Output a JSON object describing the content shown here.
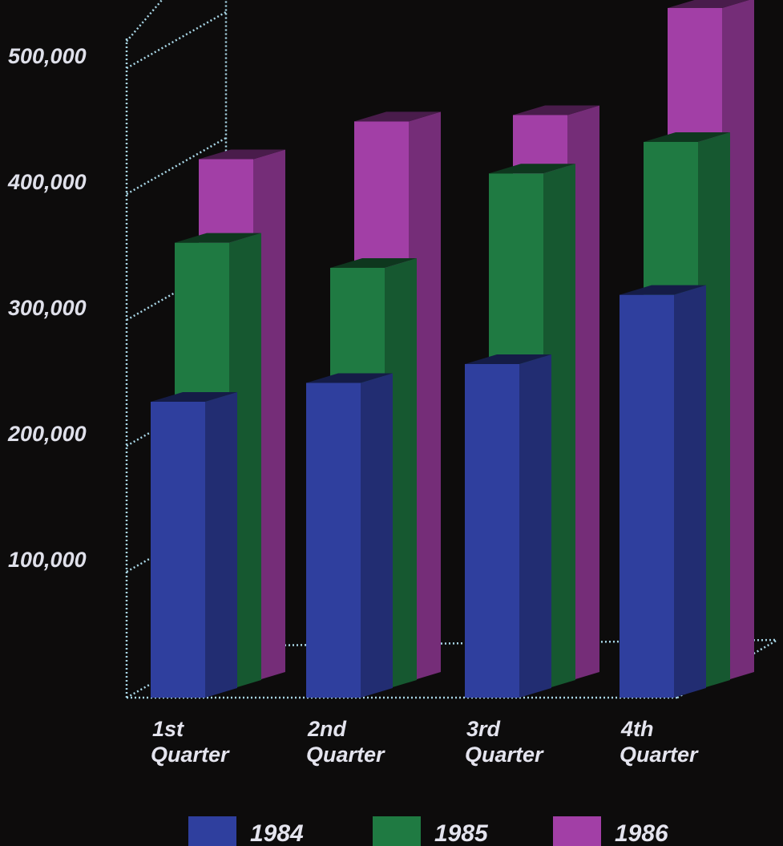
{
  "chart_data": {
    "type": "bar",
    "subtype": "3d-stacked-depth",
    "categories": [
      "1st Quarter",
      "2nd Quarter",
      "3rd Quarter",
      "4th Quarter"
    ],
    "category_lines": [
      [
        "1st",
        "Quarter"
      ],
      [
        "2nd",
        "Quarter"
      ],
      [
        "3rd",
        "Quarter"
      ],
      [
        "4th",
        "Quarter"
      ]
    ],
    "series": [
      {
        "name": "1984",
        "color": "#2f3f9e",
        "values": [
          235000,
          250000,
          265000,
          320000
        ]
      },
      {
        "name": "1985",
        "color": "#1f7a42",
        "values": [
          355000,
          335000,
          410000,
          435000
        ]
      },
      {
        "name": "1986",
        "color": "#a23fa6",
        "values": [
          415000,
          445000,
          450000,
          535000
        ]
      }
    ],
    "y_ticks": [
      100000,
      200000,
      300000,
      400000,
      500000
    ],
    "y_tick_labels": [
      "100,000",
      "200,000",
      "300,000",
      "400,000",
      "500,000"
    ],
    "ylim": [
      0,
      550000
    ],
    "grid": true,
    "legend_position": "bottom",
    "title": "",
    "xlabel": "",
    "ylabel": ""
  }
}
